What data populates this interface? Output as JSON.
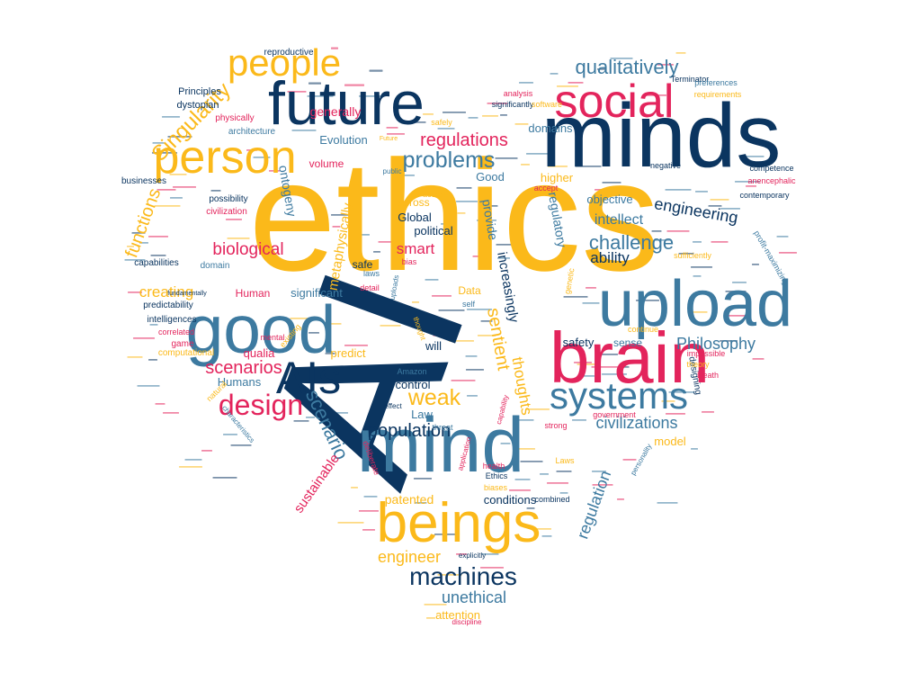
{
  "palette": {
    "gold": "#fbb91a",
    "navy": "#0b3560",
    "steel": "#3d7aa0",
    "crimson": "#e3245c"
  },
  "words": [
    {
      "text": "AI",
      "color": "navy"
    },
    {
      "text": "ethics",
      "color": "gold"
    },
    {
      "text": "mind",
      "color": "steel"
    },
    {
      "text": "minds",
      "color": "navy"
    },
    {
      "text": "upload",
      "color": "steel"
    },
    {
      "text": "brain",
      "color": "crimson"
    },
    {
      "text": "good",
      "color": "steel"
    },
    {
      "text": "future",
      "color": "navy"
    },
    {
      "text": "beings",
      "color": "gold"
    },
    {
      "text": "social",
      "color": "crimson"
    },
    {
      "text": "person",
      "color": "gold"
    },
    {
      "text": "people",
      "color": "gold"
    },
    {
      "text": "AIs",
      "color": "navy"
    },
    {
      "text": "systems",
      "color": "steel"
    },
    {
      "text": "design",
      "color": "crimson"
    },
    {
      "text": "machines",
      "color": "navy"
    },
    {
      "text": "problems",
      "color": "steel"
    },
    {
      "text": "qualitatively",
      "color": "steel"
    },
    {
      "text": "challenge",
      "color": "steel"
    },
    {
      "text": "weak",
      "color": "gold"
    },
    {
      "text": "scenarios",
      "color": "crimson"
    },
    {
      "text": "Philosophy",
      "color": "steel"
    },
    {
      "text": "civilizations",
      "color": "steel"
    },
    {
      "text": "engineering",
      "color": "navy"
    },
    {
      "text": "regulations",
      "color": "crimson"
    },
    {
      "text": "Singularity",
      "color": "gold"
    },
    {
      "text": "functions",
      "color": "gold"
    },
    {
      "text": "biological",
      "color": "crimson"
    },
    {
      "text": "creating",
      "color": "gold"
    },
    {
      "text": "scenario",
      "color": "steel"
    },
    {
      "text": "sentient",
      "color": "gold"
    },
    {
      "text": "increasingly",
      "color": "navy"
    },
    {
      "text": "regulation",
      "color": "steel"
    },
    {
      "text": "unethical",
      "color": "steel"
    },
    {
      "text": "engineer",
      "color": "gold"
    },
    {
      "text": "population",
      "color": "navy"
    },
    {
      "text": "intellect",
      "color": "steel"
    },
    {
      "text": "ability",
      "color": "navy"
    },
    {
      "text": "metaphysically",
      "color": "gold"
    },
    {
      "text": "sustainable",
      "color": "crimson"
    },
    {
      "text": "thoughts",
      "color": "gold"
    },
    {
      "text": "Evolution",
      "color": "steel"
    },
    {
      "text": "generally",
      "color": "crimson"
    },
    {
      "text": "smart",
      "color": "crimson"
    },
    {
      "text": "objective",
      "color": "steel"
    },
    {
      "text": "regulatory",
      "color": "steel"
    },
    {
      "text": "provide",
      "color": "steel"
    },
    {
      "text": "political",
      "color": "navy"
    },
    {
      "text": "ontogeny",
      "color": "steel"
    },
    {
      "text": "higher",
      "color": "gold"
    },
    {
      "text": "domains",
      "color": "steel"
    },
    {
      "text": "volume",
      "color": "crimson"
    },
    {
      "text": "Good",
      "color": "steel"
    },
    {
      "text": "across",
      "color": "gold"
    },
    {
      "text": "Global",
      "color": "navy"
    },
    {
      "text": "significant",
      "color": "steel"
    },
    {
      "text": "Human",
      "color": "crimson"
    },
    {
      "text": "safety",
      "color": "navy"
    },
    {
      "text": "sense",
      "color": "steel"
    },
    {
      "text": "attention",
      "color": "gold"
    },
    {
      "text": "model",
      "color": "gold"
    },
    {
      "text": "predict",
      "color": "gold"
    },
    {
      "text": "qualia",
      "color": "crimson"
    },
    {
      "text": "Humans",
      "color": "steel"
    },
    {
      "text": "patented",
      "color": "gold"
    },
    {
      "text": "conditions",
      "color": "navy"
    },
    {
      "text": "control",
      "color": "navy"
    },
    {
      "text": "will",
      "color": "navy"
    },
    {
      "text": "Law",
      "color": "steel"
    },
    {
      "text": "Data",
      "color": "gold"
    },
    {
      "text": "safe",
      "color": "navy"
    },
    {
      "text": "designing",
      "color": "navy"
    },
    {
      "text": "Principles",
      "color": "navy"
    },
    {
      "text": "dystopian",
      "color": "navy"
    },
    {
      "text": "reproductive",
      "color": "navy"
    },
    {
      "text": "architecture",
      "color": "steel"
    },
    {
      "text": "physically",
      "color": "crimson"
    },
    {
      "text": "businesses",
      "color": "navy"
    },
    {
      "text": "possibility",
      "color": "navy"
    },
    {
      "text": "civilization",
      "color": "crimson"
    },
    {
      "text": "capabilities",
      "color": "navy"
    },
    {
      "text": "domain",
      "color": "steel"
    },
    {
      "text": "predictability",
      "color": "navy"
    },
    {
      "text": "intelligences",
      "color": "navy"
    },
    {
      "text": "correlated",
      "color": "crimson"
    },
    {
      "text": "game",
      "color": "crimson"
    },
    {
      "text": "computational",
      "color": "gold"
    },
    {
      "text": "natural",
      "color": "gold"
    },
    {
      "text": "mental",
      "color": "crimson"
    },
    {
      "text": "existing",
      "color": "gold"
    },
    {
      "text": "laws",
      "color": "steel"
    },
    {
      "text": "bias",
      "color": "crimson"
    },
    {
      "text": "detail",
      "color": "crimson"
    },
    {
      "text": "uploads",
      "color": "steel"
    },
    {
      "text": "access",
      "color": "gold"
    },
    {
      "text": "safely",
      "color": "gold"
    },
    {
      "text": "Terminator",
      "color": "navy"
    },
    {
      "text": "significantly",
      "color": "navy"
    },
    {
      "text": "analysis",
      "color": "crimson"
    },
    {
      "text": "software",
      "color": "gold"
    },
    {
      "text": "preferences",
      "color": "steel"
    },
    {
      "text": "requirements",
      "color": "gold"
    },
    {
      "text": "competence",
      "color": "navy"
    },
    {
      "text": "anencephalic",
      "color": "crimson"
    },
    {
      "text": "contemporary",
      "color": "navy"
    },
    {
      "text": "negative",
      "color": "navy"
    },
    {
      "text": "accept",
      "color": "crimson"
    },
    {
      "text": "genetic",
      "color": "gold"
    },
    {
      "text": "impossible",
      "color": "crimson"
    },
    {
      "text": "theory",
      "color": "gold"
    },
    {
      "text": "Death",
      "color": "crimson"
    },
    {
      "text": "government",
      "color": "crimson"
    },
    {
      "text": "strong",
      "color": "crimson"
    },
    {
      "text": "personality",
      "color": "steel"
    },
    {
      "text": "continue",
      "color": "gold"
    },
    {
      "text": "sufficiently",
      "color": "gold"
    },
    {
      "text": "profit-maximizing",
      "color": "steel"
    },
    {
      "text": "health",
      "color": "crimson"
    },
    {
      "text": "Laws",
      "color": "gold"
    },
    {
      "text": "Ethics",
      "color": "navy"
    },
    {
      "text": "biases",
      "color": "gold"
    },
    {
      "text": "combined",
      "color": "navy"
    },
    {
      "text": "application",
      "color": "crimson"
    },
    {
      "text": "capability",
      "color": "crimson"
    },
    {
      "text": "threat",
      "color": "steel"
    },
    {
      "text": "effect",
      "color": "navy"
    },
    {
      "text": "explicitly",
      "color": "navy"
    },
    {
      "text": "discipline",
      "color": "crimson"
    },
    {
      "text": "deliberate",
      "color": "crimson"
    },
    {
      "text": "characteristics",
      "color": "steel"
    },
    {
      "text": "Amazon",
      "color": "steel"
    },
    {
      "text": "self",
      "color": "steel"
    },
    {
      "text": "thought",
      "color": "gold"
    },
    {
      "text": "Future",
      "color": "gold"
    },
    {
      "text": "public",
      "color": "steel"
    },
    {
      "text": "fundamentally",
      "color": "navy"
    }
  ]
}
